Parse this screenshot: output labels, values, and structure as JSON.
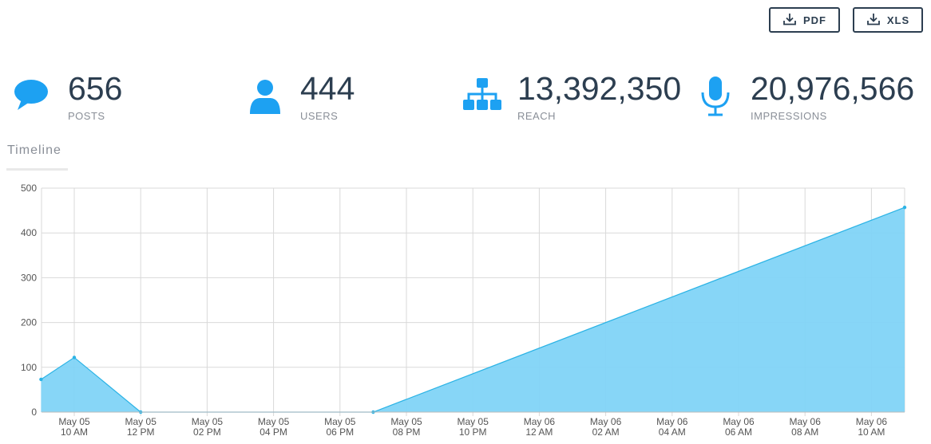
{
  "toolbar": {
    "pdf_label": "PDF",
    "xls_label": "XLS"
  },
  "stats": {
    "posts": {
      "value": "656",
      "label": "POSTS",
      "icon": "chat-bubble-icon"
    },
    "users": {
      "value": "444",
      "label": "USERS",
      "icon": "user-icon"
    },
    "reach": {
      "value": "13,392,350",
      "label": "REACH",
      "icon": "hierarchy-icon"
    },
    "impressions": {
      "value": "20,976,566",
      "label": "IMPRESSIONS",
      "icon": "microphone-icon"
    }
  },
  "colors": {
    "accent": "#1da1f2",
    "area_fill": "#81d4f7",
    "area_line": "#2bb3e5",
    "text_dark": "#2c3e50",
    "text_muted": "#8a8f98"
  },
  "tabs": {
    "timeline": "Timeline"
  },
  "chart_data": {
    "type": "area",
    "ylim": [
      0,
      500
    ],
    "yticks": [
      "0",
      "100",
      "200",
      "300",
      "400",
      "500"
    ],
    "categories": [
      [
        "May 05",
        "10 AM"
      ],
      [
        "May 05",
        "12 PM"
      ],
      [
        "May 05",
        "02 PM"
      ],
      [
        "May 05",
        "04 PM"
      ],
      [
        "May 05",
        "06 PM"
      ],
      [
        "May 05",
        "08 PM"
      ],
      [
        "May 05",
        "10 PM"
      ],
      [
        "May 06",
        "12 AM"
      ],
      [
        "May 06",
        "02 AM"
      ],
      [
        "May 06",
        "04 AM"
      ],
      [
        "May 06",
        "06 AM"
      ],
      [
        "May 06",
        "08 AM"
      ],
      [
        "May 06",
        "10 AM"
      ]
    ],
    "points": [
      {
        "x": "May 05 09:00",
        "y": 73
      },
      {
        "x": "May 05 10:00",
        "y": 122
      },
      {
        "x": "May 05 12:00",
        "y": 0
      },
      {
        "x": "May 05 19:00",
        "y": 0
      },
      {
        "x": "May 06 11:00",
        "y": 457
      }
    ],
    "grid": true,
    "legend": "none"
  }
}
